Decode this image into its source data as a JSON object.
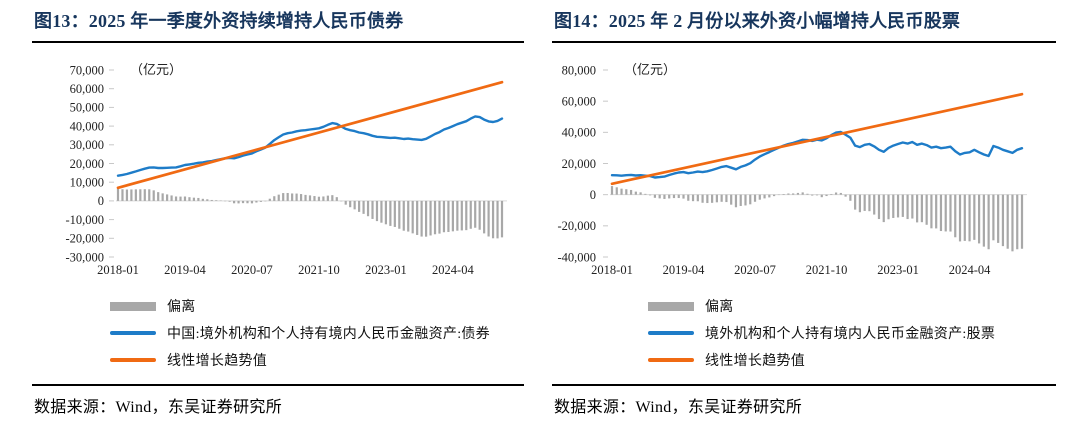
{
  "figures": [
    {
      "source": "数据来源：Wind，东吴证券研究所"
    },
    {
      "source": "数据来源：Wind，东吴证券研究所"
    }
  ],
  "chart_data": [
    {
      "type": "combo-bar-line",
      "title": "图13：2025 年一季度外资持续增持人民币债券",
      "unit": "（亿元）",
      "x_frequency": "monthly",
      "x_start": "2018-01",
      "x_end": "2025-03",
      "xticks": [
        {
          "label": "2018-01",
          "month": 0
        },
        {
          "label": "2019-04",
          "month": 15
        },
        {
          "label": "2020-07",
          "month": 30
        },
        {
          "label": "2021-10",
          "month": 45
        },
        {
          "label": "2023-01",
          "month": 60
        },
        {
          "label": "2024-04",
          "month": 75
        }
      ],
      "ylim": [
        -30000,
        70000
      ],
      "ytick_step": 10000,
      "grid": false,
      "legend_position": "bottom-left",
      "series": [
        {
          "name": "偏离",
          "type": "bar",
          "color": "#A8A8A8",
          "rule": "deviation = holdings line minus linear trend"
        },
        {
          "name": "中国:境外机构和个人持有境内人民币金融资产:债券",
          "type": "line",
          "color": "#1E7CC8",
          "values": [
            13500,
            13900,
            14400,
            15100,
            15800,
            16500,
            17200,
            17800,
            17900,
            17600,
            17600,
            17700,
            17800,
            17900,
            18500,
            19200,
            19500,
            19900,
            20400,
            20600,
            21000,
            21300,
            21800,
            22300,
            22800,
            23000,
            22800,
            23400,
            24200,
            24800,
            25400,
            26500,
            27500,
            28500,
            30500,
            32500,
            34000,
            35500,
            36200,
            36600,
            37200,
            37600,
            37800,
            38200,
            38500,
            38800,
            39600,
            40700,
            41600,
            41200,
            39800,
            38500,
            37800,
            37300,
            36600,
            36200,
            35600,
            34800,
            34300,
            34100,
            33900,
            33700,
            33800,
            33500,
            33100,
            33300,
            33000,
            32800,
            32600,
            33200,
            34500,
            35800,
            36800,
            38200,
            39000,
            40000,
            41000,
            41800,
            42600,
            44000,
            45200,
            44800,
            43500,
            42500,
            42200,
            42800,
            44000
          ]
        },
        {
          "name": "线性增长趋势值",
          "type": "line",
          "color": "#F06A13",
          "trend": true,
          "start_value": 7000,
          "end_value": 63500
        }
      ]
    },
    {
      "type": "combo-bar-line",
      "title": "图14：2025 年 2 月份以来外资小幅增持人民币股票",
      "unit": "（亿元）",
      "x_frequency": "monthly",
      "x_start": "2018-01",
      "x_end": "2025-03",
      "xticks": [
        {
          "label": "2018-01",
          "month": 0
        },
        {
          "label": "2019-04",
          "month": 15
        },
        {
          "label": "2020-07",
          "month": 30
        },
        {
          "label": "2021-10",
          "month": 45
        },
        {
          "label": "2023-01",
          "month": 60
        },
        {
          "label": "2024-04",
          "month": 75
        }
      ],
      "ylim": [
        -40000,
        80000
      ],
      "ytick_step": 20000,
      "grid": false,
      "legend_position": "bottom-left",
      "series": [
        {
          "name": "偏离",
          "type": "bar",
          "color": "#A8A8A8",
          "rule": "deviation = holdings line minus linear trend"
        },
        {
          "name": "境外机构和个人持有境内人民币金融资产:股票",
          "type": "line",
          "color": "#1E7CC8",
          "values": [
            12500,
            12400,
            12200,
            12500,
            12700,
            12300,
            12500,
            12200,
            11900,
            11000,
            11300,
            11600,
            12600,
            13500,
            14200,
            14500,
            13800,
            14200,
            14800,
            14500,
            15000,
            15800,
            16800,
            17800,
            18300,
            17300,
            16300,
            17800,
            18800,
            20200,
            22500,
            24500,
            26000,
            27300,
            28800,
            30200,
            31500,
            32500,
            33200,
            34200,
            35200,
            35000,
            34500,
            35300,
            34800,
            36200,
            38200,
            39800,
            40200,
            38500,
            36500,
            31500,
            30500,
            32000,
            32500,
            31000,
            28800,
            27500,
            30000,
            31500,
            32500,
            33500,
            32800,
            33800,
            32000,
            32800,
            31800,
            30200,
            30800,
            29800,
            30200,
            30800,
            27800,
            25800,
            26800,
            27200,
            28800,
            27200,
            25800,
            24800,
            31200,
            30200,
            28800,
            27800,
            26800,
            28800,
            29800
          ]
        },
        {
          "name": "线性增长趋势值",
          "type": "line",
          "color": "#F06A13",
          "trend": true,
          "start_value": 7000,
          "end_value": 64500
        }
      ]
    }
  ]
}
